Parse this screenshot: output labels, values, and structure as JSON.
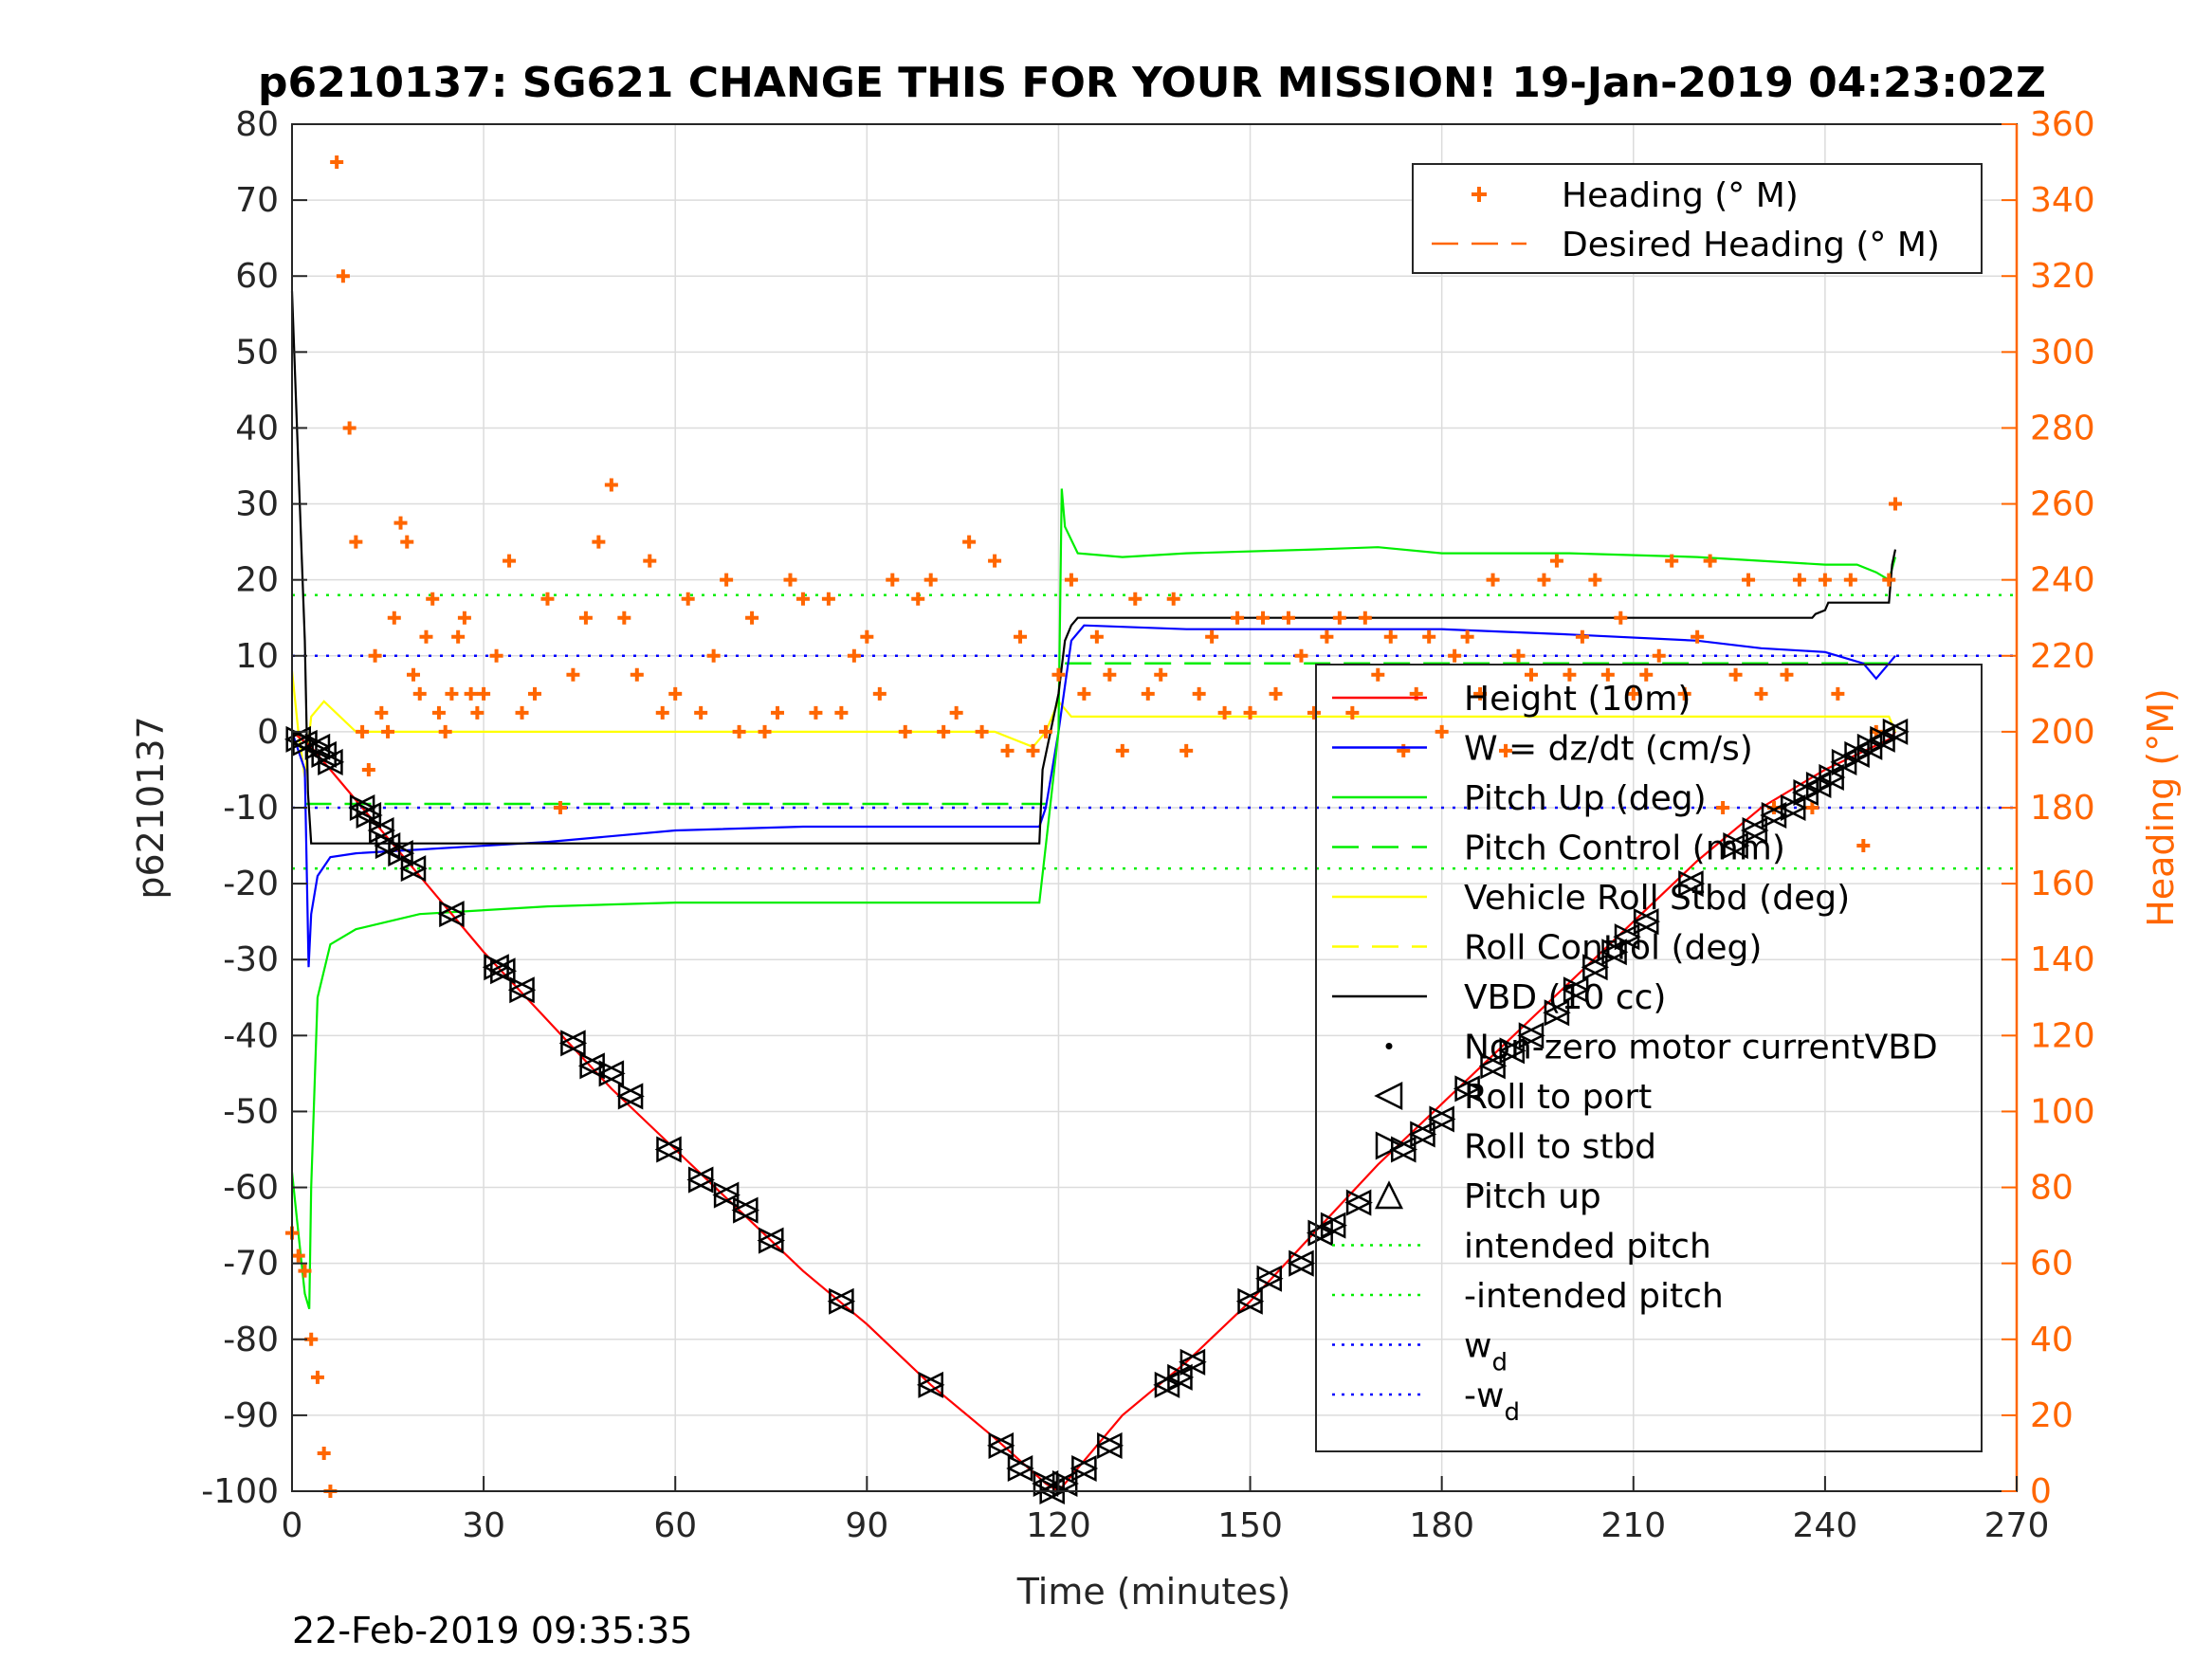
{
  "chart_data": {
    "type": "line",
    "title": "p6210137: SG621 CHANGE THIS FOR YOUR MISSION! 19-Jan-2019 04:23:02Z",
    "xlabel": "Time (minutes)",
    "ylabel_left": "p6210137",
    "ylabel_right": "Heading (°M)",
    "xlim": [
      0,
      270
    ],
    "ylim_left": [
      -100,
      80
    ],
    "ylim_right": [
      0,
      360
    ],
    "x_ticks": [
      "0",
      "30",
      "60",
      "90",
      "120",
      "150",
      "180",
      "210",
      "240",
      "270"
    ],
    "y_ticks_left": [
      "80",
      "70",
      "60",
      "50",
      "40",
      "30",
      "20",
      "10",
      "0",
      "-10",
      "-20",
      "-30",
      "-40",
      "-50",
      "-60",
      "-70",
      "-80",
      "-90",
      "-100"
    ],
    "y_ticks_right": [
      "360",
      "340",
      "320",
      "300",
      "280",
      "260",
      "240",
      "220",
      "200",
      "180",
      "160",
      "140",
      "120",
      "100",
      "80",
      "60",
      "40",
      "20",
      "0"
    ],
    "grid": true,
    "colors": {
      "depth": "#ff0000",
      "w": "#0000ff",
      "pitch": "#00ee00",
      "roll": "#ffff00",
      "vbd": "#000000",
      "heading": "#ff6600"
    },
    "reference_lines": [
      {
        "name": "intended pitch",
        "y": 18,
        "color": "#00ee00"
      },
      {
        "name": "-intended pitch",
        "y": -18,
        "color": "#00ee00"
      },
      {
        "name": "w_d",
        "y": 10,
        "color": "#0000ff"
      },
      {
        "name": "-w_d",
        "y": -10,
        "color": "#0000ff"
      },
      {
        "name": "pitch_control_dive",
        "y": -9.5,
        "x": [
          2,
          118
        ],
        "color": "#00ee00"
      },
      {
        "name": "pitch_control_climb",
        "y": 9,
        "x": [
          121,
          251
        ],
        "color": "#00ee00"
      }
    ],
    "series": [
      {
        "name": "Height (10m)",
        "x": [
          0,
          3,
          10,
          20,
          30,
          40,
          50,
          60,
          70,
          80,
          90,
          100,
          110,
          118,
          120,
          125,
          130,
          140,
          150,
          160,
          170,
          180,
          190,
          200,
          210,
          220,
          230,
          240,
          250,
          251
        ],
        "y": [
          0,
          -2,
          -9,
          -19,
          -29,
          -38,
          -47,
          -55,
          -63,
          -71,
          -78,
          -86,
          -93,
          -99,
          -100,
          -95,
          -90,
          -83,
          -75,
          -66,
          -57,
          -49,
          -41,
          -33,
          -25,
          -17,
          -10,
          -5,
          -1,
          0
        ]
      },
      {
        "name": "W = dz/dt (cm/s)",
        "x": [
          0,
          2,
          2.6,
          3,
          4,
          6,
          10,
          20,
          40,
          60,
          80,
          100,
          117,
          118,
          120,
          122,
          124,
          140,
          160,
          180,
          200,
          220,
          230,
          240,
          246,
          248,
          250,
          251
        ],
        "y": [
          0,
          -5,
          -31,
          -24,
          -19,
          -16.5,
          -16,
          -15.5,
          -14.5,
          -13,
          -12.5,
          -12.5,
          -12.5,
          -10,
          0,
          12,
          14,
          13.5,
          13.5,
          13.5,
          12.8,
          12,
          11,
          10.5,
          9,
          7,
          9,
          10
        ]
      },
      {
        "name": "Pitch Up (deg)",
        "x": [
          0,
          1,
          2,
          2.7,
          3,
          4,
          6,
          10,
          20,
          40,
          60,
          80,
          100,
          117,
          118,
          120,
          120.5,
          121,
          123,
          130,
          140,
          160,
          170,
          180,
          200,
          220,
          230,
          240,
          245,
          248,
          250,
          251
        ],
        "y": [
          -58,
          -66,
          -74,
          -76,
          -60,
          -35,
          -28,
          -26,
          -24,
          -23,
          -22.5,
          -22.5,
          -22.5,
          -22.5,
          -15,
          0,
          32,
          27,
          23.5,
          23,
          23.5,
          24,
          24.3,
          23.5,
          23.5,
          23,
          22.5,
          22,
          22,
          21,
          20,
          23
        ]
      },
      {
        "name": "Vehicle Roll Stbd (deg)",
        "x": [
          0,
          1,
          2,
          3,
          5,
          10,
          20,
          40,
          60,
          80,
          100,
          110,
          116,
          118,
          119,
          120,
          122,
          125,
          140,
          160,
          180,
          200,
          220,
          240,
          250,
          251
        ],
        "y": [
          8,
          0,
          -6,
          2,
          4,
          0,
          0,
          0,
          0,
          0,
          0,
          0,
          -2,
          0,
          2,
          4,
          2,
          2,
          2,
          2,
          2,
          2,
          2,
          2,
          2,
          0
        ]
      },
      {
        "name": "VBD (10 cc)",
        "x": [
          0,
          1,
          2,
          2.5,
          3,
          10,
          30,
          60,
          90,
          117,
          117.5,
          120,
          121,
          122,
          123,
          130,
          160,
          200,
          230,
          238,
          238.5,
          240,
          240.5,
          250,
          250.5,
          251
        ],
        "y": [
          58,
          35,
          12,
          -8,
          -14.7,
          -14.7,
          -14.7,
          -14.7,
          -14.7,
          -14.7,
          -5,
          5,
          12,
          14,
          15,
          15,
          15,
          15,
          15,
          15,
          15.5,
          16,
          17,
          17,
          22,
          24
        ]
      },
      {
        "name": "Heading (° M)",
        "axis": "right",
        "x": [
          0,
          1,
          2,
          3,
          4,
          5,
          6,
          7,
          8,
          9,
          10,
          11,
          12,
          13,
          14,
          15,
          16,
          17,
          18,
          19,
          20,
          21,
          22,
          23,
          24,
          25,
          26,
          27,
          28,
          29,
          30,
          32,
          34,
          36,
          38,
          40,
          42,
          44,
          46,
          48,
          50,
          52,
          54,
          56,
          58,
          60,
          62,
          64,
          66,
          68,
          70,
          72,
          74,
          76,
          78,
          80,
          82,
          84,
          86,
          88,
          90,
          92,
          94,
          96,
          98,
          100,
          102,
          104,
          106,
          108,
          110,
          112,
          114,
          116,
          118,
          120,
          122,
          124,
          126,
          128,
          130,
          132,
          134,
          136,
          138,
          140,
          142,
          144,
          146,
          148,
          150,
          152,
          154,
          156,
          158,
          160,
          162,
          164,
          166,
          168,
          170,
          172,
          174,
          176,
          178,
          180,
          182,
          184,
          186,
          188,
          190,
          192,
          194,
          196,
          198,
          200,
          202,
          204,
          206,
          208,
          210,
          212,
          214,
          216,
          218,
          220,
          222,
          224,
          226,
          228,
          230,
          232,
          234,
          236,
          238,
          240,
          242,
          244,
          246,
          248,
          250,
          251
        ],
        "y": [
          68,
          62,
          58,
          40,
          30,
          10,
          0,
          350,
          320,
          280,
          250,
          200,
          190,
          220,
          205,
          200,
          230,
          255,
          250,
          215,
          210,
          225,
          235,
          205,
          200,
          210,
          225,
          230,
          210,
          205,
          210,
          220,
          245,
          205,
          210,
          235,
          180,
          215,
          230,
          250,
          265,
          230,
          215,
          245,
          205,
          210,
          235,
          205,
          220,
          240,
          200,
          230,
          200,
          205,
          240,
          235,
          205,
          235,
          205,
          220,
          225,
          210,
          240,
          200,
          235,
          240,
          200,
          205,
          250,
          200,
          245,
          195,
          225,
          195,
          200,
          215,
          240,
          210,
          225,
          215,
          195,
          235,
          210,
          215,
          235,
          195,
          210,
          225,
          205,
          230,
          205,
          230,
          210,
          230,
          220,
          205,
          225,
          230,
          205,
          230,
          215,
          225,
          195,
          210,
          225,
          200,
          220,
          225,
          210,
          240,
          195,
          220,
          215,
          240,
          245,
          215,
          225,
          240,
          215,
          230,
          210,
          215,
          220,
          245,
          210,
          225,
          245,
          180,
          215,
          240,
          210,
          180,
          215,
          240,
          180,
          240,
          210,
          240,
          170,
          200,
          240,
          260
        ]
      }
    ],
    "markers": [
      {
        "name": "Roll to port",
        "symbol": "triangle-left",
        "x": [
          1,
          2,
          4,
          5,
          6,
          11,
          12,
          14,
          15,
          17,
          19,
          25,
          32,
          33,
          36,
          44,
          47,
          50,
          53,
          59,
          64,
          68,
          71,
          75,
          86,
          100,
          111,
          114,
          118,
          119,
          121,
          124,
          128,
          137,
          139,
          141,
          150,
          153,
          158,
          161,
          163,
          167,
          174,
          177,
          180,
          184,
          188,
          191,
          194,
          198,
          201,
          204,
          207,
          209,
          212,
          219,
          226,
          229,
          232,
          235,
          237,
          239,
          241,
          243,
          245,
          247,
          249,
          251
        ],
        "y": [
          -1,
          -1.5,
          -2,
          -3,
          -4,
          -10,
          -11,
          -13,
          -15,
          -16,
          -18,
          -24,
          -31,
          -31.5,
          -34,
          -41,
          -44,
          -45,
          -48,
          -55,
          -59,
          -61,
          -63,
          -67,
          -75,
          -86,
          -94,
          -97,
          -99,
          -100,
          -99,
          -97,
          -94,
          -86,
          -85,
          -83,
          -75,
          -72,
          -70,
          -66,
          -65,
          -62,
          -55,
          -53,
          -51,
          -47,
          -44,
          -42,
          -40,
          -37,
          -34,
          -31,
          -29,
          -27,
          -25,
          -20,
          -15,
          -13,
          -11,
          -10,
          -8,
          -7,
          -6,
          -4,
          -3,
          -2,
          -1,
          0
        ]
      },
      {
        "name": "Roll to stbd",
        "symbol": "triangle-right",
        "x": [
          1,
          2,
          4,
          5,
          6,
          11,
          12,
          14,
          15,
          17,
          19,
          25,
          32,
          33,
          36,
          44,
          47,
          50,
          53,
          59,
          64,
          68,
          71,
          75,
          86,
          100,
          111,
          114,
          118,
          119,
          121,
          124,
          128,
          137,
          139,
          141,
          150,
          153,
          158,
          161,
          163,
          167,
          174,
          177,
          180,
          184,
          188,
          191,
          194,
          198,
          201,
          204,
          207,
          209,
          212,
          219,
          226,
          229,
          232,
          235,
          237,
          239,
          241,
          243,
          245,
          247,
          249,
          251
        ],
        "y": [
          -1,
          -1.5,
          -2,
          -3,
          -4,
          -10,
          -11,
          -13,
          -15,
          -16,
          -18,
          -24,
          -31,
          -31.5,
          -34,
          -41,
          -44,
          -45,
          -48,
          -55,
          -59,
          -61,
          -63,
          -67,
          -75,
          -86,
          -94,
          -97,
          -99,
          -100,
          -99,
          -97,
          -94,
          -86,
          -85,
          -83,
          -75,
          -72,
          -70,
          -66,
          -65,
          -62,
          -55,
          -53,
          -51,
          -47,
          -44,
          -42,
          -40,
          -37,
          -34,
          -31,
          -29,
          -27,
          -25,
          -20,
          -15,
          -13,
          -11,
          -10,
          -8,
          -7,
          -6,
          -4,
          -3,
          -2,
          -1,
          0
        ]
      },
      {
        "name": "Pitch up",
        "symbol": "triangle-up",
        "x": [],
        "y": []
      },
      {
        "name": "Non-zero motor currentVBD",
        "symbol": "dot",
        "x": [],
        "y": []
      }
    ],
    "legend_main": [
      {
        "label": "Height (10m)",
        "style": "solid",
        "color": "#ff0000"
      },
      {
        "label": "W = dz/dt (cm/s)",
        "style": "solid",
        "color": "#0000ff"
      },
      {
        "label": "Pitch Up (deg)",
        "style": "solid",
        "color": "#00ee00"
      },
      {
        "label": "Pitch Control (mm)",
        "style": "dashed",
        "color": "#00ee00"
      },
      {
        "label": "Vehicle Roll Stbd (deg)",
        "style": "solid",
        "color": "#ffff00"
      },
      {
        "label": "Roll Control (deg)",
        "style": "dashed",
        "color": "#ffff00"
      },
      {
        "label": "VBD (10 cc)",
        "style": "solid",
        "color": "#000000"
      },
      {
        "label": "Non-zero motor currentVBD",
        "style": "dot",
        "color": "#000000"
      },
      {
        "label": "Roll to port",
        "style": "triangle-left",
        "color": "#000000"
      },
      {
        "label": "Roll to stbd",
        "style": "triangle-right",
        "color": "#000000"
      },
      {
        "label": "Pitch up",
        "style": "triangle-up",
        "color": "#000000"
      },
      {
        "label": "intended pitch",
        "style": "dotted",
        "color": "#00ee00"
      },
      {
        "label": "-intended pitch",
        "style": "dotted",
        "color": "#00ee00"
      },
      {
        "label": "w",
        "sub": "d",
        "style": "dotted",
        "color": "#0000ff"
      },
      {
        "label": "-w",
        "sub": "d",
        "style": "dotted",
        "color": "#0000ff"
      }
    ],
    "legend_heading": [
      {
        "label": "Heading (° M)",
        "style": "plus",
        "color": "#ff6600"
      },
      {
        "label": "Desired Heading (° M)",
        "style": "dashed",
        "color": "#ff6600"
      }
    ],
    "timestamp": "22-Feb-2019 09:35:35"
  }
}
